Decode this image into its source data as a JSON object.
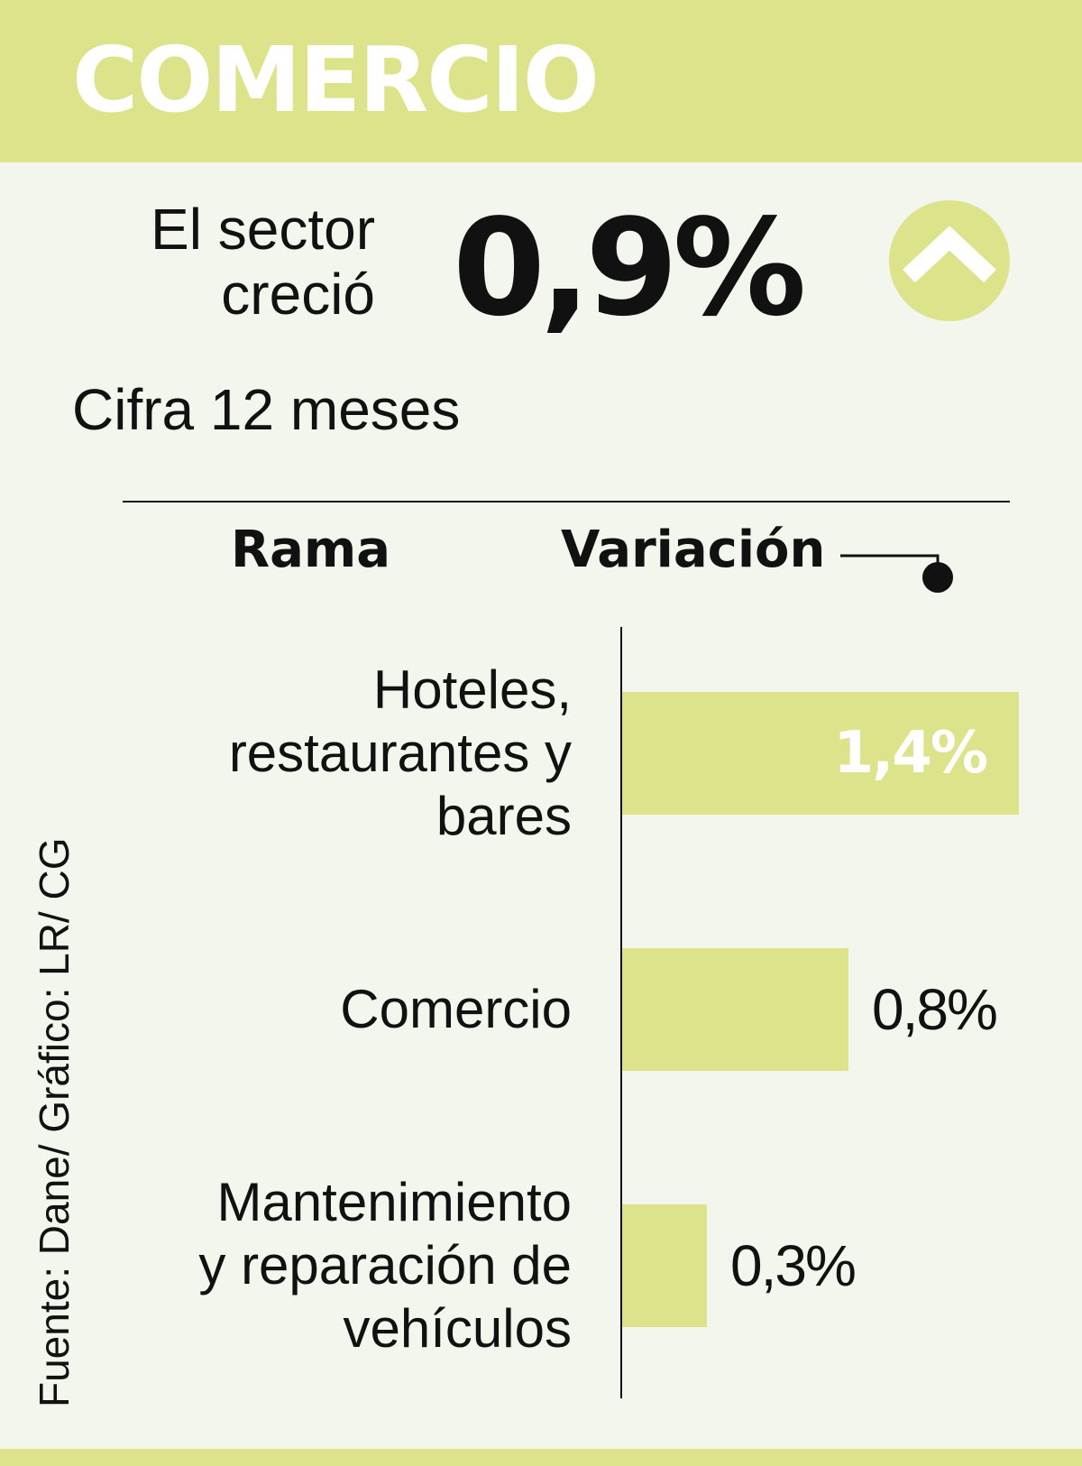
{
  "title": "COMERCIO",
  "summary": {
    "text_line1": "El sector",
    "text_line2": "creció",
    "value": "0,9%",
    "direction_icon": "chevron-up-icon",
    "period": "Cifra 12 meses"
  },
  "table_headers": {
    "rama": "Rama",
    "variacion": "Variación"
  },
  "colors": {
    "accent": "#dde38a",
    "background": "#f2f6ec",
    "text": "#111111"
  },
  "chart_data": {
    "type": "bar",
    "orientation": "horizontal",
    "categories": [
      [
        "Hoteles,",
        "restaurantes y",
        "bares"
      ],
      [
        "Comercio"
      ],
      [
        "Mantenimiento",
        "y reparación de",
        "vehículos"
      ]
    ],
    "values": [
      1.4,
      0.8,
      0.3
    ],
    "value_labels": [
      "1,4%",
      "0,8%",
      "0,3%"
    ],
    "xlim": [
      0,
      1.4
    ],
    "grid": false
  },
  "source": "Fuente: Dane/ Gráfico: LR/ CG"
}
